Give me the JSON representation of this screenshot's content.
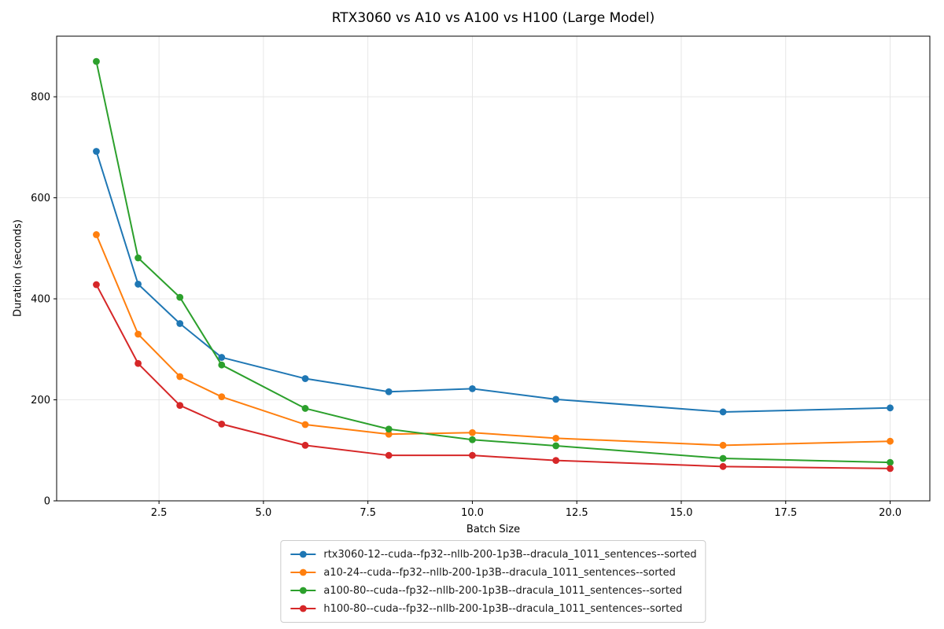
{
  "chart_data": {
    "type": "line",
    "title": "RTX3060 vs A10 vs A100 vs H100 (Large Model)",
    "xlabel": "Batch Size",
    "ylabel": "Duration (seconds)",
    "x": [
      1,
      2,
      3,
      4,
      6,
      8,
      10,
      12,
      16,
      20
    ],
    "series": [
      {
        "name": "rtx3060-12--cuda--fp32--nllb-200-1p3B--dracula_1011_sentences--sorted",
        "color": "#1f77b4",
        "values": [
          692,
          429,
          351,
          284,
          242,
          216,
          222,
          201,
          176,
          184
        ]
      },
      {
        "name": "a10-24--cuda--fp32--nllb-200-1p3B--dracula_1011_sentences--sorted",
        "color": "#ff7f0e",
        "values": [
          527,
          330,
          246,
          206,
          151,
          132,
          135,
          124,
          110,
          118
        ]
      },
      {
        "name": "a100-80--cuda--fp32--nllb-200-1p3B--dracula_1011_sentences--sorted",
        "color": "#2ca02c",
        "values": [
          870,
          481,
          403,
          269,
          183,
          142,
          121,
          109,
          84,
          76
        ]
      },
      {
        "name": "h100-80--cuda--fp32--nllb-200-1p3B--dracula_1011_sentences--sorted",
        "color": "#d62728",
        "values": [
          428,
          272,
          189,
          152,
          110,
          90,
          90,
          80,
          68,
          64
        ]
      }
    ],
    "xlim": [
      0.05,
      20.95
    ],
    "ylim": [
      0,
      920
    ],
    "xticks": [
      2.5,
      5.0,
      7.5,
      10.0,
      12.5,
      15.0,
      17.5,
      20.0
    ],
    "xtick_labels": [
      "2.5",
      "5.0",
      "7.5",
      "10.0",
      "12.5",
      "15.0",
      "17.5",
      "20.0"
    ],
    "yticks": [
      0,
      200,
      400,
      600,
      800
    ],
    "ytick_labels": [
      "0",
      "200",
      "400",
      "600",
      "800"
    ],
    "grid": true,
    "legend_position": "bottom-center",
    "grid_color": "#e4e4e4",
    "spine_color": "#000000",
    "background_color": "#ffffff"
  }
}
